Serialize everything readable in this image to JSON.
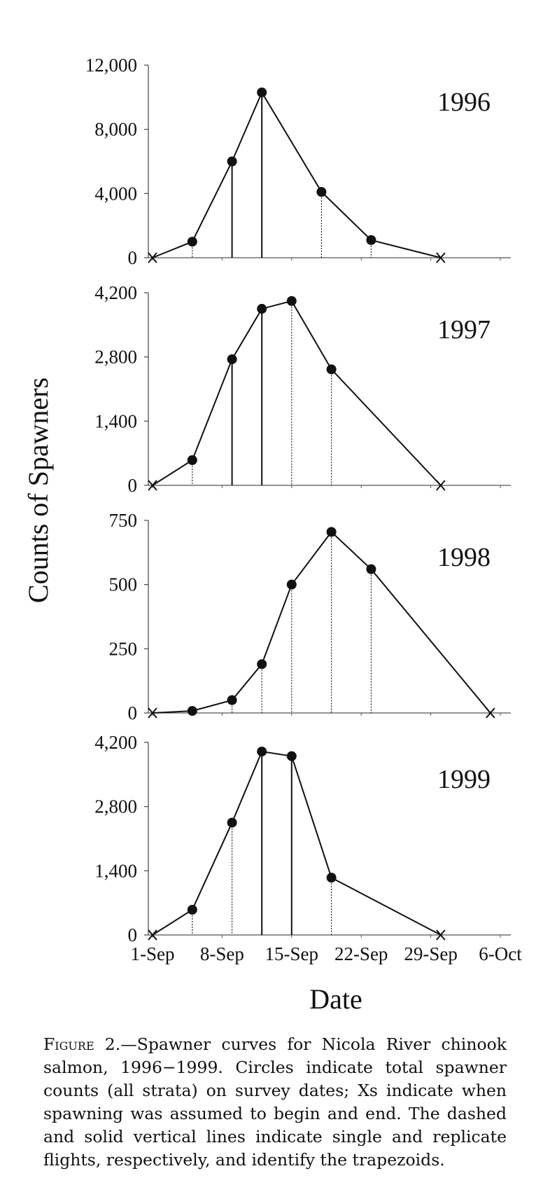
{
  "chart_data": {
    "type": "line",
    "ylabel": "Counts of Spawners",
    "xlabel": "Date",
    "x_ticks": [
      "1-Sep",
      "8-Sep",
      "15-Sep",
      "22-Sep",
      "29-Sep",
      "6-Oct"
    ],
    "x_range": [
      "1-Sep",
      "6-Oct"
    ],
    "marker_legend": {
      "circle": "total spawner count",
      "x": "assumed spawning start/end"
    },
    "panels": [
      {
        "year_label": "1996",
        "y_ticks": [
          "0",
          "4,000",
          "8,000",
          "12,000"
        ],
        "ylim": [
          0,
          12000
        ],
        "points": [
          {
            "date": "1-Sep",
            "count": 0,
            "marker": "x"
          },
          {
            "date": "5-Sep",
            "count": 1000,
            "marker": "circle",
            "flight": "single"
          },
          {
            "date": "9-Sep",
            "count": 6000,
            "marker": "circle",
            "flight": "replicate"
          },
          {
            "date": "12-Sep",
            "count": 10300,
            "marker": "circle",
            "flight": "replicate"
          },
          {
            "date": "18-Sep",
            "count": 4100,
            "marker": "circle",
            "flight": "single"
          },
          {
            "date": "23-Sep",
            "count": 1100,
            "marker": "circle",
            "flight": "single"
          },
          {
            "date": "30-Sep",
            "count": 0,
            "marker": "x"
          }
        ]
      },
      {
        "year_label": "1997",
        "y_ticks": [
          "0",
          "1,400",
          "2,800",
          "4,200"
        ],
        "ylim": [
          0,
          4200
        ],
        "points": [
          {
            "date": "1-Sep",
            "count": 0,
            "marker": "x"
          },
          {
            "date": "5-Sep",
            "count": 550,
            "marker": "circle",
            "flight": "single"
          },
          {
            "date": "9-Sep",
            "count": 2750,
            "marker": "circle",
            "flight": "replicate"
          },
          {
            "date": "12-Sep",
            "count": 3850,
            "marker": "circle",
            "flight": "replicate"
          },
          {
            "date": "15-Sep",
            "count": 4020,
            "marker": "circle",
            "flight": "single"
          },
          {
            "date": "19-Sep",
            "count": 2530,
            "marker": "circle",
            "flight": "single"
          },
          {
            "date": "30-Sep",
            "count": 0,
            "marker": "x"
          }
        ]
      },
      {
        "year_label": "1998",
        "y_ticks": [
          "0",
          "250",
          "500",
          "750"
        ],
        "ylim": [
          0,
          750
        ],
        "points": [
          {
            "date": "1-Sep",
            "count": 0,
            "marker": "x"
          },
          {
            "date": "5-Sep",
            "count": 8,
            "marker": "circle",
            "flight": "single"
          },
          {
            "date": "9-Sep",
            "count": 50,
            "marker": "circle",
            "flight": "single"
          },
          {
            "date": "12-Sep",
            "count": 190,
            "marker": "circle",
            "flight": "single"
          },
          {
            "date": "15-Sep",
            "count": 500,
            "marker": "circle",
            "flight": "single"
          },
          {
            "date": "19-Sep",
            "count": 705,
            "marker": "circle",
            "flight": "single"
          },
          {
            "date": "23-Sep",
            "count": 560,
            "marker": "circle",
            "flight": "single"
          },
          {
            "date": "5-Oct",
            "count": 0,
            "marker": "x"
          }
        ]
      },
      {
        "year_label": "1999",
        "y_ticks": [
          "0",
          "1,400",
          "2,800",
          "4,200"
        ],
        "ylim": [
          0,
          4200
        ],
        "points": [
          {
            "date": "1-Sep",
            "count": 0,
            "marker": "x"
          },
          {
            "date": "5-Sep",
            "count": 550,
            "marker": "circle",
            "flight": "single"
          },
          {
            "date": "9-Sep",
            "count": 2450,
            "marker": "circle",
            "flight": "single"
          },
          {
            "date": "12-Sep",
            "count": 4000,
            "marker": "circle",
            "flight": "replicate"
          },
          {
            "date": "15-Sep",
            "count": 3900,
            "marker": "circle",
            "flight": "replicate"
          },
          {
            "date": "19-Sep",
            "count": 1250,
            "marker": "circle",
            "flight": "single"
          },
          {
            "date": "30-Sep",
            "count": 0,
            "marker": "x"
          }
        ]
      }
    ]
  },
  "caption": {
    "label": "Figure 2.",
    "text": "—Spawner curves for Nicola River chinook salmon, 1996−1999. Circles indicate total spawner counts (all strata) on survey dates; Xs indicate when spawning was assumed to begin and end. The dashed and solid vertical lines indicate single and replicate flights, respectively, and identify the trapezoids."
  }
}
